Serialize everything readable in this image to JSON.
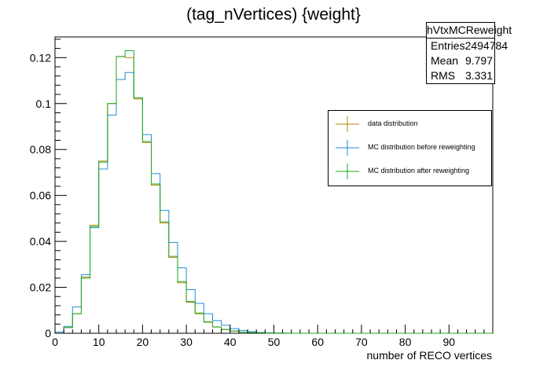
{
  "chart_data": {
    "type": "bar",
    "title": "(tag_nVertices) {weight}",
    "xlabel": "number of RECO vertices",
    "ylabel": "",
    "xlim": [
      0,
      100
    ],
    "ylim": [
      0,
      0.129
    ],
    "bin_width": 2,
    "x_ticks": [
      0,
      10,
      20,
      30,
      40,
      50,
      60,
      70,
      80,
      90
    ],
    "y_ticks": [
      0,
      0.02,
      0.04,
      0.06,
      0.08,
      0.1,
      0.12
    ],
    "x_tick_labels": [
      "0",
      "10",
      "20",
      "30",
      "40",
      "50",
      "60",
      "70",
      "80",
      "90"
    ],
    "y_tick_labels": [
      "0",
      "0.02",
      "0.04",
      "0.06",
      "0.08",
      "0.1",
      "0.12"
    ],
    "legend_position": "right",
    "series": [
      {
        "name": "data distribution",
        "color": "#b8860b",
        "values": [
          0,
          0.0025,
          0.0085,
          0.0245,
          0.047,
          0.075,
          0.1,
          0.1205,
          0.12,
          0.102,
          0.083,
          0.0645,
          0.048,
          0.033,
          0.022,
          0.0135,
          0.0085,
          0.0048,
          0.0027,
          0.0016,
          0.0009,
          0.0005,
          0.0003,
          0.0002,
          0.0001,
          0.0001,
          0,
          0,
          0,
          0,
          0,
          0,
          0,
          0,
          0,
          0,
          0,
          0,
          0,
          0,
          0,
          0,
          0,
          0,
          0,
          0,
          0,
          0,
          0,
          0
        ]
      },
      {
        "name": "MC distribution before reweighting",
        "color": "#1f8fd6",
        "values": [
          0.0005,
          0.003,
          0.0115,
          0.0255,
          0.046,
          0.0715,
          0.095,
          0.1105,
          0.1135,
          0.1025,
          0.0865,
          0.0695,
          0.0535,
          0.0395,
          0.0285,
          0.019,
          0.013,
          0.0085,
          0.0055,
          0.0035,
          0.002,
          0.0012,
          0.0007,
          0.0004,
          0.0002,
          0.0001,
          0.0001,
          0,
          0,
          0,
          0,
          0,
          0,
          0,
          0,
          0,
          0,
          0,
          0,
          0,
          0,
          0,
          0,
          0,
          0,
          0,
          0,
          0,
          0,
          0
        ]
      },
      {
        "name": "MC distribution after reweighting",
        "color": "#22aa22",
        "values": [
          0,
          0.0025,
          0.0085,
          0.024,
          0.0465,
          0.0745,
          0.1,
          0.1205,
          0.123,
          0.1025,
          0.0835,
          0.065,
          0.0485,
          0.0335,
          0.0225,
          0.0138,
          0.0088,
          0.005,
          0.0028,
          0.0017,
          0.001,
          0.0005,
          0.0003,
          0.0002,
          0.0001,
          0.0001,
          0,
          0,
          0,
          0,
          0,
          0,
          0,
          0,
          0,
          0,
          0,
          0,
          0,
          0,
          0,
          0,
          0,
          0,
          0,
          0,
          0,
          0,
          0,
          0
        ]
      }
    ]
  },
  "stats": {
    "name": "hVtxMCReweight",
    "rows": [
      {
        "label": "Entries",
        "value": "2494784"
      },
      {
        "label": "Mean",
        "value": "9.797"
      },
      {
        "label": "RMS",
        "value": "3.331"
      }
    ]
  }
}
